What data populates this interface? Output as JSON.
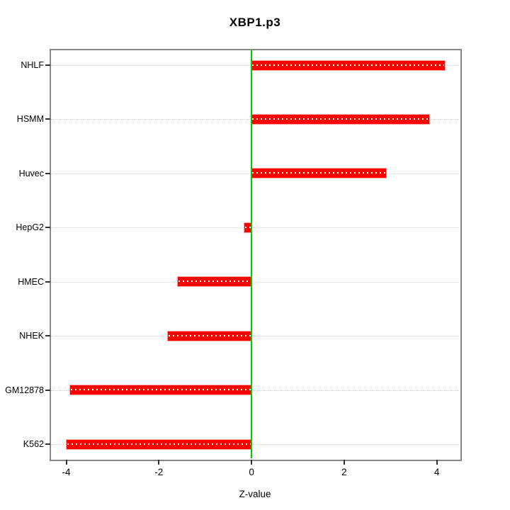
{
  "chart_data": {
    "type": "bar",
    "orientation": "horizontal",
    "title": "XBP1.p3",
    "xlabel": "Z-value",
    "ylabel": "",
    "categories": [
      "NHLF",
      "HSMM",
      "Huvec",
      "HepG2",
      "HMEC",
      "NHEK",
      "GM12878",
      "K562"
    ],
    "values": [
      4.17,
      3.84,
      2.91,
      -0.15,
      -1.59,
      -1.81,
      -3.92,
      -3.99
    ],
    "xticks": [
      -4,
      -2,
      0,
      2,
      4
    ],
    "xlim": [
      -4.33,
      4.48
    ],
    "zero_line_x": 0,
    "grid": "horizontal dotted line at each category",
    "legend": "none",
    "colors": {
      "bar": "#ff0000",
      "bar_center_dots": "#ffffff",
      "zero_line": "#00cd00",
      "gridline": "#cfcfcf",
      "box_border": "#888888",
      "text": "#000000"
    }
  }
}
